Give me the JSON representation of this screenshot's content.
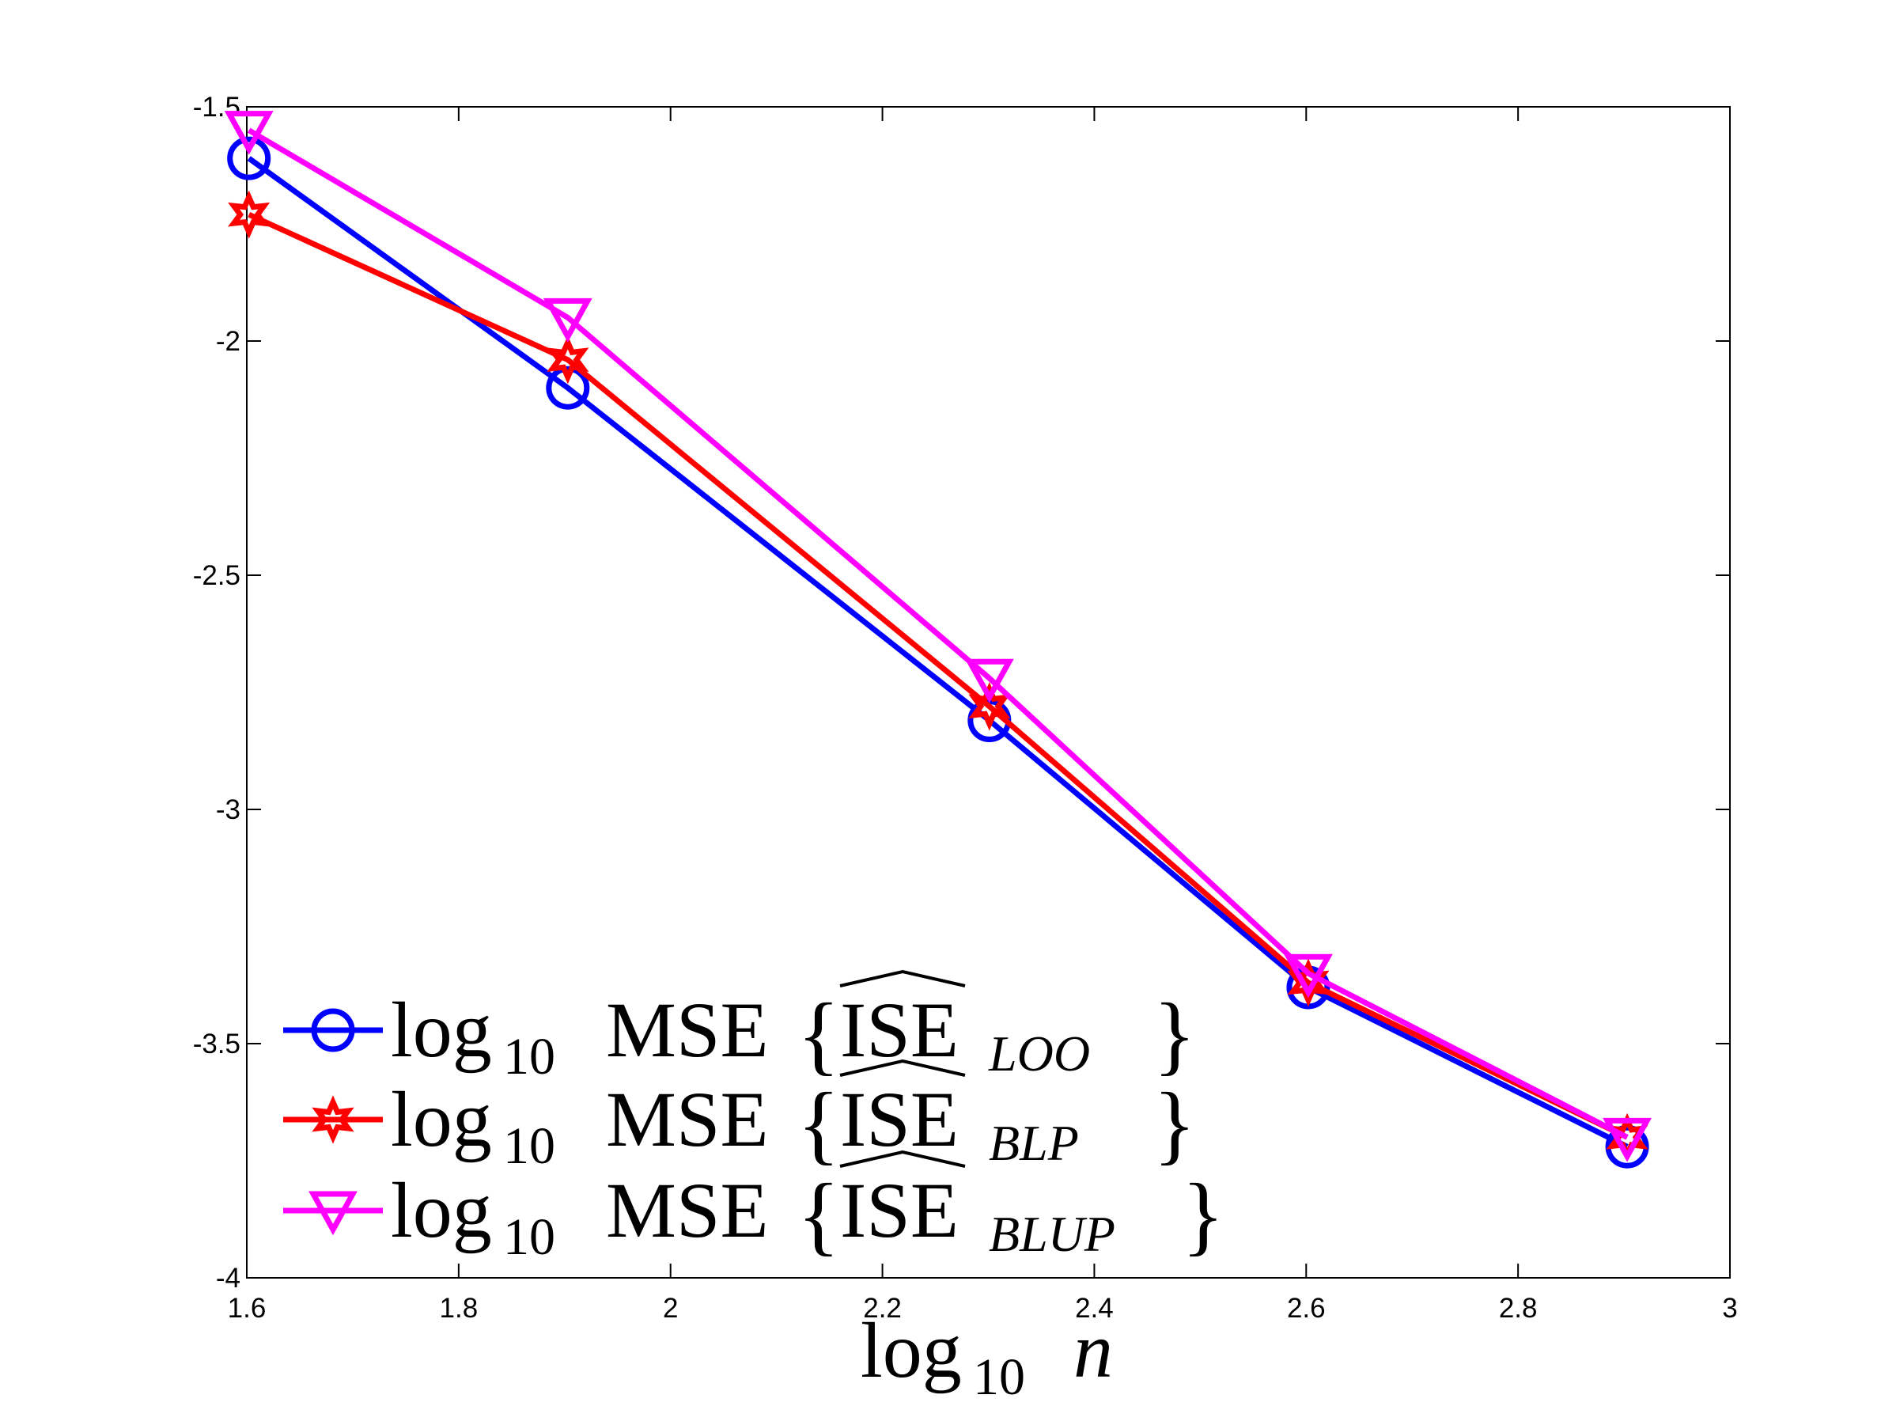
{
  "chart_data": {
    "type": "line",
    "title": "",
    "xlabel": {
      "main": "log",
      "sub": "10",
      "var": "n"
    },
    "ylabel": "",
    "xlim": [
      1.6,
      3
    ],
    "ylim": [
      -4,
      -1.5
    ],
    "xticks": [
      1.6,
      1.8,
      2,
      2.2,
      2.4,
      2.6,
      2.8,
      3
    ],
    "xtick_labels": [
      "1.6",
      "1.8",
      "2",
      "2.2",
      "2.4",
      "2.6",
      "2.8",
      "3"
    ],
    "yticks": [
      -4,
      -3.5,
      -3,
      -2.5,
      -2,
      -1.5
    ],
    "ytick_labels": [
      "-4",
      "-3.5",
      "-3",
      "-2.5",
      "-2",
      "-1.5"
    ],
    "grid": false,
    "legend_position": "bottom-left",
    "x": [
      1.602,
      1.903,
      2.301,
      2.602,
      2.903
    ],
    "series": [
      {
        "name": "LOO",
        "legend": {
          "log": "log",
          "sub10": "10",
          "mse": "MSE",
          "open": "{",
          "ise": "ISE",
          "hat": "^",
          "sub": "LOO",
          "close": "}"
        },
        "color": "#0000ff",
        "marker": "circle",
        "values": [
          -1.61,
          -2.1,
          -2.81,
          -3.38,
          -3.72
        ]
      },
      {
        "name": "BLP",
        "legend": {
          "log": "log",
          "sub10": "10",
          "mse": "MSE",
          "open": "{",
          "ise": "ISE",
          "hat": "^",
          "sub": "BLP",
          "close": "}"
        },
        "color": "#ff0000",
        "marker": "star",
        "values": [
          -1.73,
          -2.04,
          -2.78,
          -3.37,
          -3.7
        ]
      },
      {
        "name": "BLUP",
        "legend": {
          "log": "log",
          "sub10": "10",
          "mse": "MSE",
          "open": "{",
          "ise": "ISE",
          "hat": "^",
          "sub": "BLUP",
          "close": "}"
        },
        "color": "#ff00ff",
        "marker": "triangle-down",
        "values": [
          -1.55,
          -1.95,
          -2.72,
          -3.35,
          -3.7
        ]
      }
    ]
  }
}
